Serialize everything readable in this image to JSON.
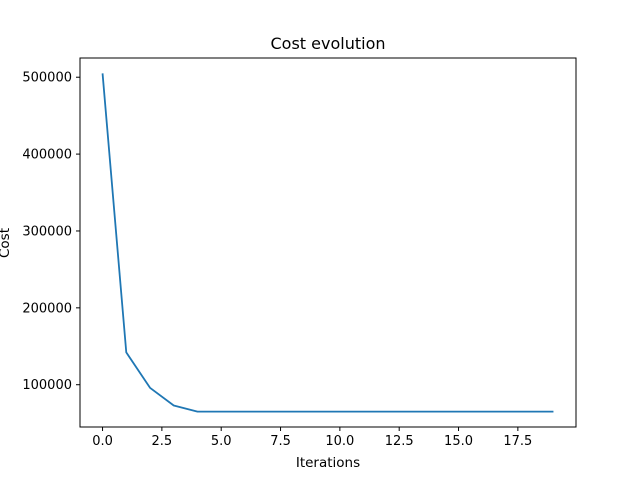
{
  "chart_data": {
    "type": "line",
    "title": "Cost evolution",
    "xlabel": "Iterations",
    "ylabel": "Cost",
    "xlim": [
      -0.95,
      19.95
    ],
    "ylim": [
      45000,
      525000
    ],
    "x_ticks": [
      0.0,
      2.5,
      5.0,
      7.5,
      10.0,
      12.5,
      15.0,
      17.5
    ],
    "x_tick_labels": [
      "0.0",
      "2.5",
      "5.0",
      "7.5",
      "10.0",
      "12.5",
      "15.0",
      "17.5"
    ],
    "y_ticks": [
      100000,
      200000,
      300000,
      400000,
      500000
    ],
    "y_tick_labels": [
      "100000",
      "200000",
      "300000",
      "400000",
      "500000"
    ],
    "grid": false,
    "series": [
      {
        "name": "cost",
        "color": "#1f77b4",
        "x": [
          0,
          1,
          2,
          3,
          4,
          5,
          6,
          7,
          8,
          9,
          10,
          11,
          12,
          13,
          14,
          15,
          16,
          17,
          18,
          19
        ],
        "values": [
          505000,
          142000,
          96000,
          73000,
          65000,
          65000,
          65000,
          65000,
          65000,
          65000,
          65000,
          65000,
          65000,
          65000,
          65000,
          65000,
          65000,
          65000,
          65000,
          65000
        ]
      }
    ]
  }
}
